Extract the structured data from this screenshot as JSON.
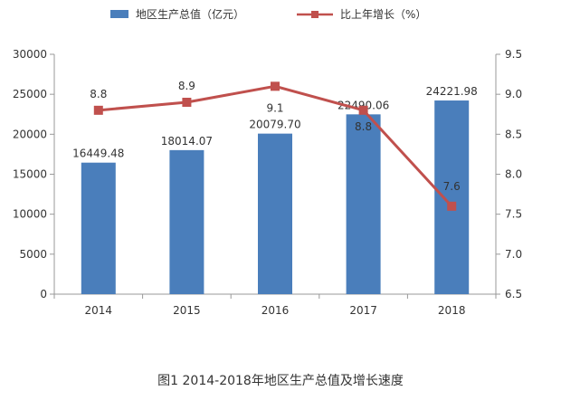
{
  "chart_data": {
    "type": "bar+line",
    "categories": [
      "2014",
      "2015",
      "2016",
      "2017",
      "2018"
    ],
    "series": [
      {
        "name": "地区生产总值（亿元）",
        "type": "bar",
        "axis": "left",
        "values": [
          16449.48,
          18014.07,
          20079.7,
          22490.06,
          24221.98
        ],
        "labels": [
          "16449.48",
          "18014.07",
          "20079.70",
          "22490.06",
          "24221.98"
        ],
        "color": "#4a7ebb"
      },
      {
        "name": "比上年增长（%）",
        "type": "line",
        "axis": "right",
        "values": [
          8.8,
          8.9,
          9.1,
          8.8,
          7.6
        ],
        "labels": [
          "8.8",
          "8.9",
          "9.1",
          "8.8",
          "7.6"
        ],
        "color": "#c0504d"
      }
    ],
    "left_axis": {
      "range": [
        0,
        30000
      ],
      "ticks": [
        "0",
        "5000",
        "10000",
        "15000",
        "20000",
        "25000",
        "30000"
      ]
    },
    "right_axis": {
      "range": [
        6.5,
        9.5
      ],
      "ticks": [
        "6.5",
        "7.0",
        "7.5",
        "8.0",
        "8.5",
        "9.0",
        "9.5"
      ]
    },
    "legend_position": "top",
    "grid": false,
    "caption": "图1 2014-2018年地区生产总值及增长速度"
  }
}
